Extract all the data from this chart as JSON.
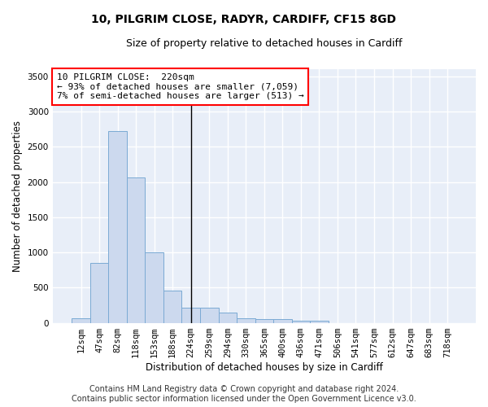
{
  "title1": "10, PILGRIM CLOSE, RADYR, CARDIFF, CF15 8GD",
  "title2": "Size of property relative to detached houses in Cardiff",
  "xlabel": "Distribution of detached houses by size in Cardiff",
  "ylabel": "Number of detached properties",
  "categories": [
    "12sqm",
    "47sqm",
    "82sqm",
    "118sqm",
    "153sqm",
    "188sqm",
    "224sqm",
    "259sqm",
    "294sqm",
    "330sqm",
    "365sqm",
    "400sqm",
    "436sqm",
    "471sqm",
    "506sqm",
    "541sqm",
    "577sqm",
    "612sqm",
    "647sqm",
    "683sqm",
    "718sqm"
  ],
  "values": [
    60,
    850,
    2720,
    2060,
    1000,
    460,
    220,
    220,
    140,
    65,
    50,
    50,
    30,
    25,
    0,
    0,
    0,
    0,
    0,
    0,
    0
  ],
  "bar_color": "#ccd9ee",
  "bar_edge_color": "#7baad4",
  "vline_x": 6.0,
  "ylim": [
    0,
    3600
  ],
  "yticks": [
    0,
    500,
    1000,
    1500,
    2000,
    2500,
    3000,
    3500
  ],
  "bg_color": "#e8eef8",
  "grid_color": "#ffffff",
  "title_fontsize": 10,
  "subtitle_fontsize": 9,
  "axis_label_fontsize": 8.5,
  "tick_fontsize": 7.5,
  "annotation_fontsize": 8,
  "footer_fontsize": 7,
  "annotation_line1": "10 PILGRIM CLOSE:  220sqm",
  "annotation_line2": "← 93% of detached houses are smaller (7,059)",
  "annotation_line3": "7% of semi-detached houses are larger (513) →",
  "footer1": "Contains HM Land Registry data © Crown copyright and database right 2024.",
  "footer2": "Contains public sector information licensed under the Open Government Licence v3.0."
}
